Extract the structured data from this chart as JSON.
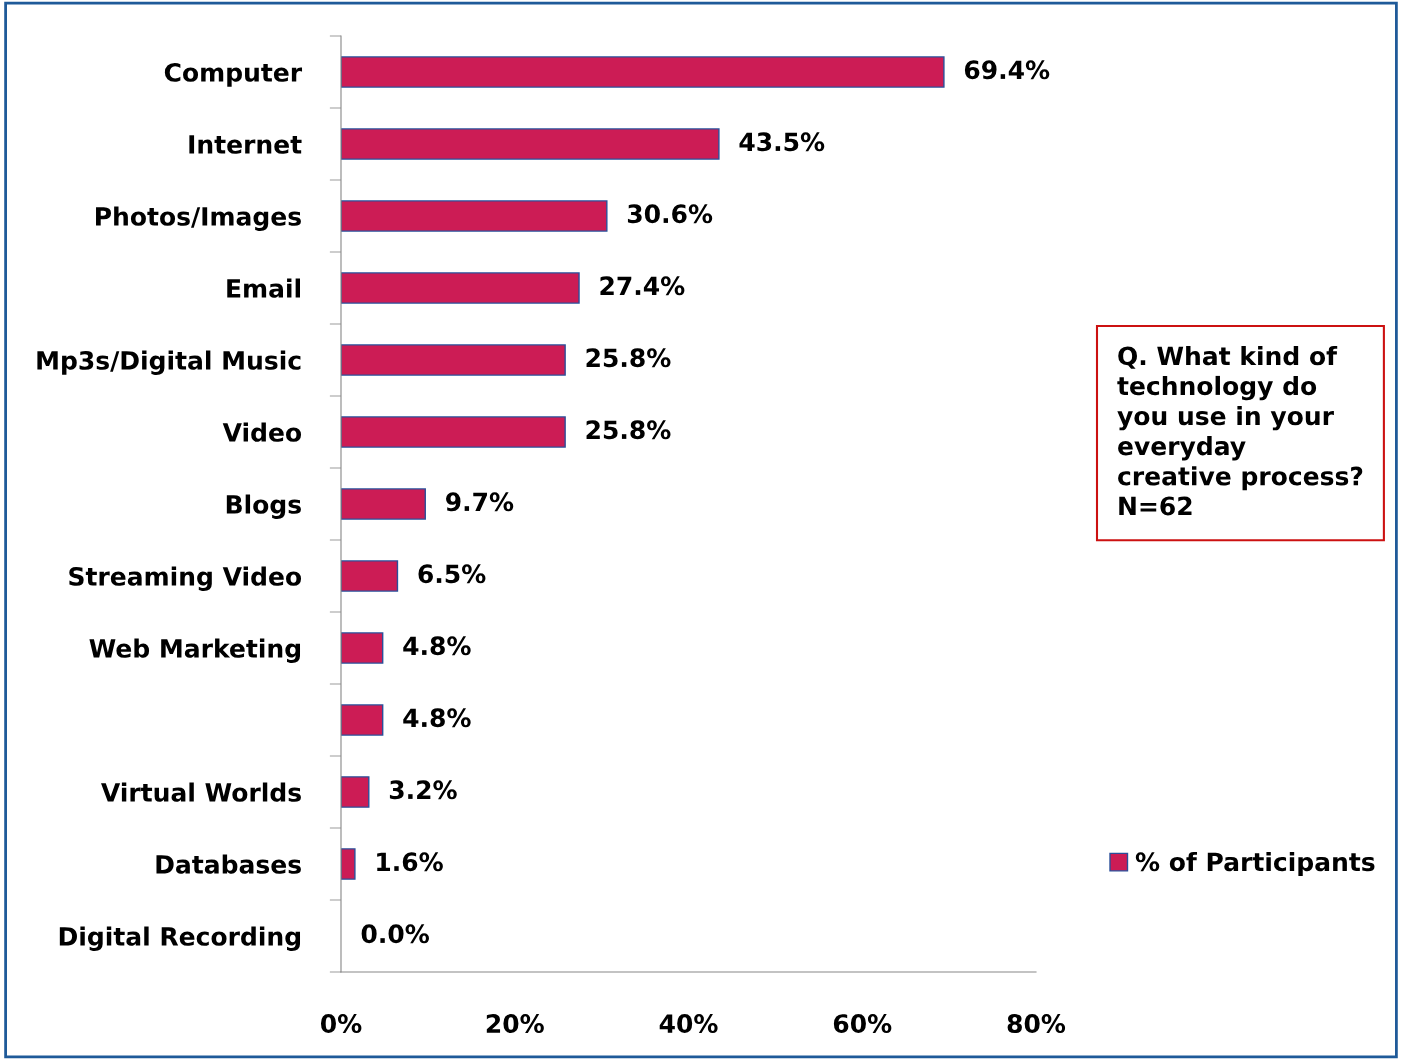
{
  "chart_data": {
    "type": "bar",
    "orientation": "horizontal",
    "categories": [
      "Computer",
      "Internet",
      "Photos/Images",
      "Email",
      "Mp3s/Digital Music",
      "Video",
      "Blogs",
      "Streaming Video",
      "Web Marketing",
      null,
      "Virtual Worlds",
      "Databases",
      "Digital Recording"
    ],
    "series": [
      {
        "name": "% of Participants",
        "color": "#cc1c55",
        "values": [
          69.4,
          43.5,
          30.6,
          27.4,
          25.8,
          25.8,
          9.7,
          6.5,
          4.8,
          4.8,
          3.2,
          1.6,
          0.0
        ],
        "value_labels": [
          "69.4%",
          "43.5%",
          "30.6%",
          "27.4%",
          "25.8%",
          "25.8%",
          "9.7%",
          "6.5%",
          "4.8%",
          "4.8%",
          "3.2%",
          "1.6%",
          "0.0%"
        ]
      }
    ],
    "xlim": [
      0,
      80
    ],
    "xticks": [
      {
        "value": 0,
        "label": "0%"
      },
      {
        "value": 20,
        "label": "20%"
      },
      {
        "value": 40,
        "label": "40%"
      },
      {
        "value": 60,
        "label": "60%"
      },
      {
        "value": 80,
        "label": "80%"
      }
    ],
    "grid": false,
    "legend": "right",
    "annotations": [
      "Q. What kind of\ntechnology do\nyou use in your\neveryday\ncreative process?\nN=62"
    ]
  }
}
